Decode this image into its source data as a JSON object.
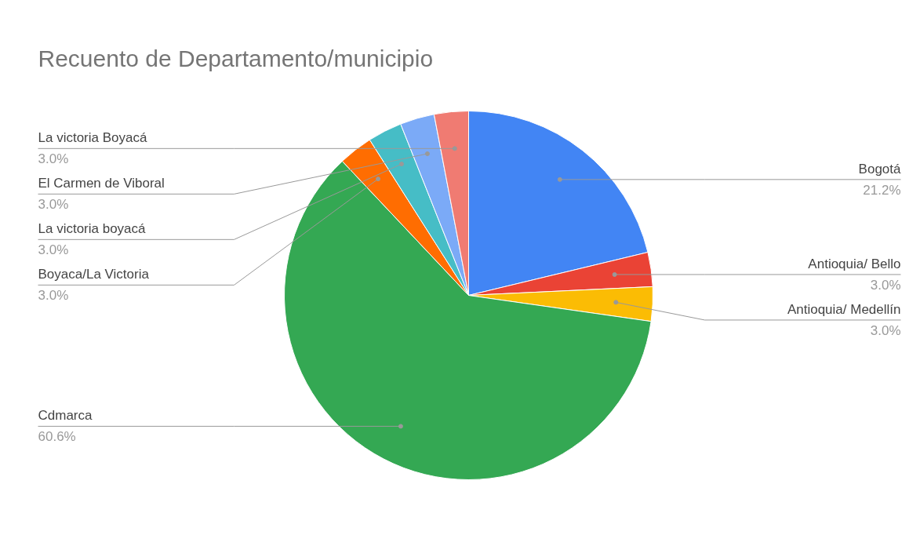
{
  "chart_data": {
    "type": "pie",
    "title": "Recuento de Departamento/municipio",
    "categories": [
      "Bogotá",
      "Antioquia/ Bello",
      "Antioquia/ Medellín",
      "Cdmarca",
      "Boyaca/La Victoria",
      "La victoria boyacá",
      "El Carmen de Viboral",
      "La victoria Boyacá"
    ],
    "values": [
      21.2,
      3.0,
      3.0,
      60.6,
      3.0,
      3.0,
      3.0,
      3.0
    ],
    "colors": [
      "#4285f4",
      "#ea4335",
      "#fbbc04",
      "#34a853",
      "#ff6d01",
      "#46bdc6",
      "#7baaf7",
      "#f07b72"
    ],
    "value_labels": [
      "21.2%",
      "3.0%",
      "3.0%",
      "60.6%",
      "3.0%",
      "3.0%",
      "3.0%",
      "3.0%"
    ]
  }
}
